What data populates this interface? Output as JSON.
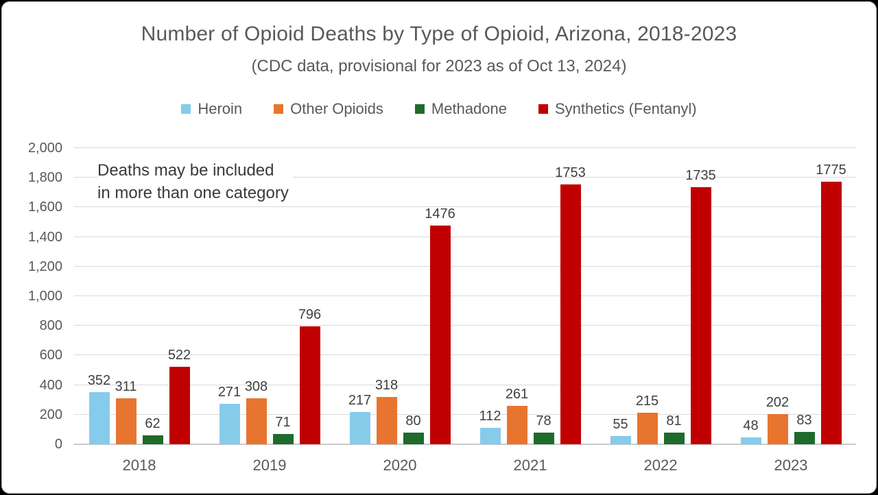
{
  "title": "Number of Opioid Deaths by Type of Opioid, Arizona, 2018-2023",
  "subtitle": "(CDC data, provisional for 2023 as of Oct 13, 2024)",
  "annotation": {
    "line1": "Deaths may be included",
    "line2": "in more than one category"
  },
  "chart_data": {
    "type": "bar",
    "title": "Number of Opioid Deaths by Type of Opioid, Arizona, 2018-2023",
    "subtitle": "(CDC data, provisional for 2023 as of Oct 13, 2024)",
    "categories": [
      "2018",
      "2019",
      "2020",
      "2021",
      "2022",
      "2023"
    ],
    "series": [
      {
        "name": "Heroin",
        "color": "#87CBEA",
        "values": [
          352,
          271,
          217,
          112,
          55,
          48
        ]
      },
      {
        "name": "Other Opioids",
        "color": "#E8752F",
        "values": [
          311,
          308,
          318,
          261,
          215,
          202
        ]
      },
      {
        "name": "Methadone",
        "color": "#1E6B2B",
        "values": [
          62,
          71,
          80,
          78,
          81,
          83
        ]
      },
      {
        "name": "Synthetics (Fentanyl)",
        "color": "#C00000",
        "values": [
          522,
          796,
          1476,
          1753,
          1735,
          1775
        ]
      }
    ],
    "ylim": [
      0,
      2000
    ],
    "ytick_step": 200,
    "ytick_labels": [
      "0",
      "200",
      "400",
      "600",
      "800",
      "1,000",
      "1,200",
      "1,400",
      "1,600",
      "1,800",
      "2,000"
    ],
    "grid": true,
    "legend_position": "top",
    "annotation": "Deaths may be included in more than one category",
    "colors": {
      "grid": "#d9d9d9",
      "axis_line": "#c9c9c9",
      "tick_text": "#595959",
      "title_text": "#595959",
      "value_label_text": "#3f3f3f",
      "frame_border": "#000000",
      "background": "#ffffff"
    }
  }
}
